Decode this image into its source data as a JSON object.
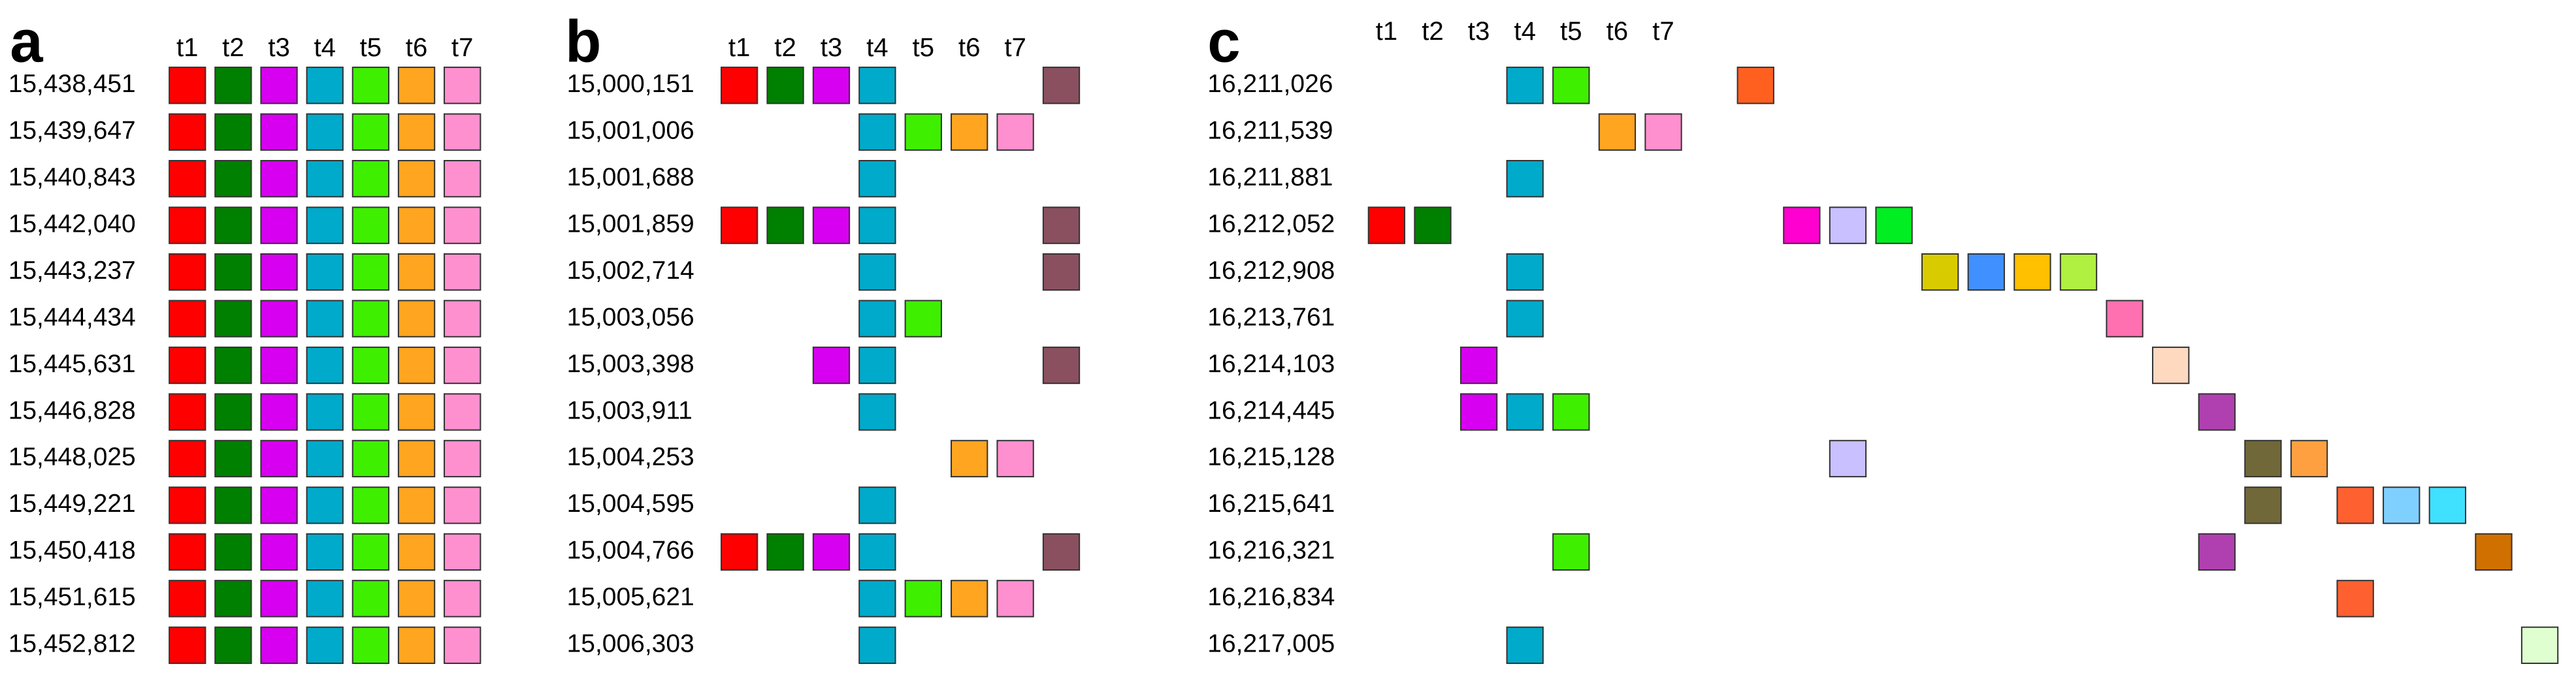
{
  "panels": [
    {
      "label": "a",
      "headers": [
        "t1",
        "t2",
        "t3",
        "t4",
        "t5",
        "t6",
        "t7"
      ],
      "column_colors": [
        "#ff0000",
        "#008000",
        "#d800f0",
        "#00aacb",
        "#3ef000",
        "#ffa520",
        "#ff90d0"
      ],
      "rows": [
        {
          "label": "15,438,451",
          "cells": [
            0,
            1,
            2,
            3,
            4,
            5,
            6
          ]
        },
        {
          "label": "15,439,647",
          "cells": [
            0,
            1,
            2,
            3,
            4,
            5,
            6
          ]
        },
        {
          "label": "15,440,843",
          "cells": [
            0,
            1,
            2,
            3,
            4,
            5,
            6
          ]
        },
        {
          "label": "15,442,040",
          "cells": [
            0,
            1,
            2,
            3,
            4,
            5,
            6
          ]
        },
        {
          "label": "15,443,237",
          "cells": [
            0,
            1,
            2,
            3,
            4,
            5,
            6
          ]
        },
        {
          "label": "15,444,434",
          "cells": [
            0,
            1,
            2,
            3,
            4,
            5,
            6
          ]
        },
        {
          "label": "15,445,631",
          "cells": [
            0,
            1,
            2,
            3,
            4,
            5,
            6
          ]
        },
        {
          "label": "15,446,828",
          "cells": [
            0,
            1,
            2,
            3,
            4,
            5,
            6
          ]
        },
        {
          "label": "15,448,025",
          "cells": [
            0,
            1,
            2,
            3,
            4,
            5,
            6
          ]
        },
        {
          "label": "15,449,221",
          "cells": [
            0,
            1,
            2,
            3,
            4,
            5,
            6
          ]
        },
        {
          "label": "15,450,418",
          "cells": [
            0,
            1,
            2,
            3,
            4,
            5,
            6
          ]
        },
        {
          "label": "15,451,615",
          "cells": [
            0,
            1,
            2,
            3,
            4,
            5,
            6
          ]
        },
        {
          "label": "15,452,812",
          "cells": [
            0,
            1,
            2,
            3,
            4,
            5,
            6
          ]
        }
      ]
    },
    {
      "label": "b",
      "headers": [
        "t1",
        "t2",
        "t3",
        "t4",
        "t5",
        "t6",
        "t7"
      ],
      "column_colors": [
        "#ff0000",
        "#008000",
        "#d800f0",
        "#00aacb",
        "#3ef000",
        "#ffa520",
        "#ff90d0",
        "#8a5060"
      ],
      "rows": [
        {
          "label": "15,000,151",
          "cells": [
            0,
            1,
            2,
            3,
            7
          ]
        },
        {
          "label": "15,001,006",
          "cells": [
            3,
            4,
            5,
            6
          ]
        },
        {
          "label": "15,001,688",
          "cells": [
            3
          ]
        },
        {
          "label": "15,001,859",
          "cells": [
            0,
            1,
            2,
            3,
            7
          ]
        },
        {
          "label": "15,002,714",
          "cells": [
            3,
            7
          ]
        },
        {
          "label": "15,003,056",
          "cells": [
            3,
            4
          ]
        },
        {
          "label": "15,003,398",
          "cells": [
            2,
            3,
            7
          ]
        },
        {
          "label": "15,003,911",
          "cells": [
            3
          ]
        },
        {
          "label": "15,004,253",
          "cells": [
            5,
            6
          ]
        },
        {
          "label": "15,004,595",
          "cells": [
            3
          ]
        },
        {
          "label": "15,004,766",
          "cells": [
            0,
            1,
            2,
            3,
            7
          ]
        },
        {
          "label": "15,005,621",
          "cells": [
            3,
            4,
            5,
            6
          ]
        },
        {
          "label": "15,006,303",
          "cells": [
            3
          ]
        }
      ]
    },
    {
      "label": "c",
      "headers": [
        "t1",
        "t2",
        "t3",
        "t4",
        "t5",
        "t6",
        "t7"
      ],
      "column_colors": [
        "#ff0000",
        "#008000",
        "#d800f0",
        "#00aacb",
        "#3ef000",
        "#ffa520",
        "#ff90d0",
        "#ffffff",
        "#ff6020",
        "#ff00d0",
        "#c8c0ff",
        "#00ee22",
        "#d8cc00",
        "#4090ff",
        "#ffc000",
        "#b0f040",
        "#ff70b0",
        "#ffd8c0",
        "#b040b0",
        "#706838",
        "#ffa040",
        "#ff6030",
        "#80d0ff",
        "#40e0ff",
        "#d07000",
        "#e0ffd0"
      ],
      "rows": [
        {
          "label": "16,211,026",
          "cells": [
            3,
            4,
            8
          ]
        },
        {
          "label": "16,211,539",
          "cells": [
            5,
            6
          ]
        },
        {
          "label": "16,211,881",
          "cells": [
            3
          ]
        },
        {
          "label": "16,212,052",
          "cells": [
            0,
            1,
            9,
            10,
            11
          ]
        },
        {
          "label": "16,212,908",
          "cells": [
            3,
            12,
            13,
            14,
            15
          ]
        },
        {
          "label": "16,213,761",
          "cells": [
            3,
            16
          ]
        },
        {
          "label": "16,214,103",
          "cells": [
            2,
            17
          ]
        },
        {
          "label": "16,214,445",
          "cells": [
            2,
            3,
            4,
            18
          ]
        },
        {
          "label": "16,215,128",
          "cells": [
            10,
            19,
            20
          ]
        },
        {
          "label": "16,215,641",
          "cells": [
            19,
            21,
            22,
            23
          ]
        },
        {
          "label": "16,216,321",
          "cells": [
            4,
            18,
            24
          ]
        },
        {
          "label": "16,216,834",
          "cells": [
            21
          ]
        },
        {
          "label": "16,217,005",
          "cells": [
            3,
            25
          ]
        }
      ]
    }
  ]
}
